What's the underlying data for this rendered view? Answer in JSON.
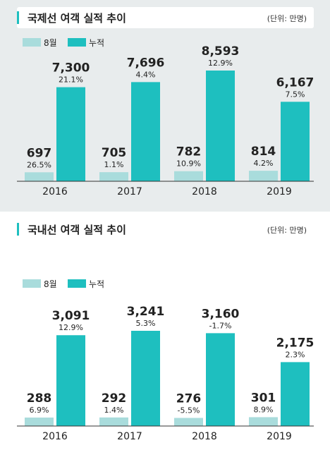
{
  "colors": {
    "monthly": "#a9dcdc",
    "cumulative": "#1ebfbf",
    "title_mark": "#1ebfbf",
    "text": "#222222",
    "axis": "#333333"
  },
  "chart_data": [
    {
      "id": "intl",
      "type": "bar",
      "title": "국제선 여객 실적 추이",
      "unit": "(단위: 만명)",
      "categories": [
        "2016",
        "2017",
        "2018",
        "2019"
      ],
      "series": [
        {
          "name": "8월",
          "values": [
            697,
            705,
            782,
            814
          ],
          "value_labels": [
            "697",
            "705",
            "782",
            "814"
          ],
          "growth_labels": [
            "26.5%",
            "1.1%",
            "10.9%",
            "4.2%"
          ]
        },
        {
          "name": "누적",
          "values": [
            7300,
            7696,
            8593,
            6167
          ],
          "value_labels": [
            "7,300",
            "7,696",
            "8,593",
            "6,167"
          ],
          "growth_labels": [
            "21.1%",
            "4.4%",
            "12.9%",
            "7.5%"
          ]
        }
      ],
      "legend_position": "top-left",
      "grid": false
    },
    {
      "id": "dom",
      "type": "bar",
      "title": "국내선 여객 실적 추이",
      "unit": "(단위: 만명)",
      "categories": [
        "2016",
        "2017",
        "2018",
        "2019"
      ],
      "series": [
        {
          "name": "8월",
          "values": [
            288,
            292,
            276,
            301
          ],
          "value_labels": [
            "288",
            "292",
            "276",
            "301"
          ],
          "growth_labels": [
            "6.9%",
            "1.4%",
            "-5.5%",
            "8.9%"
          ]
        },
        {
          "name": "누적",
          "values": [
            3091,
            3241,
            3160,
            2175
          ],
          "value_labels": [
            "3,091",
            "3,241",
            "3,160",
            "2,175"
          ],
          "growth_labels": [
            "12.9%",
            "5.3%",
            "-1.7%",
            "2.3%"
          ]
        }
      ],
      "legend_position": "top-left",
      "grid": false
    }
  ]
}
